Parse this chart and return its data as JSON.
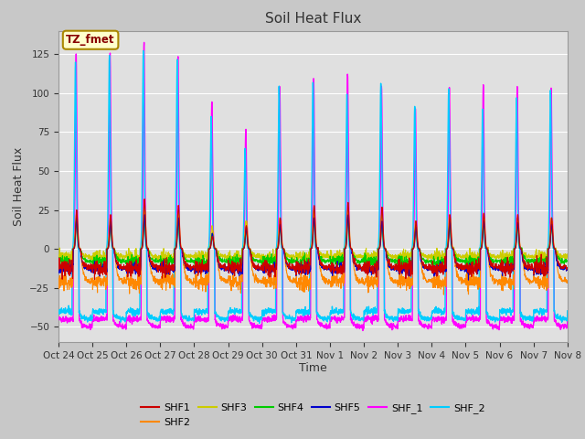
{
  "title": "Soil Heat Flux",
  "ylabel": "Soil Heat Flux",
  "xlabel": "Time",
  "ylim": [
    -60,
    140
  ],
  "fig_bg_color": "#c8c8c8",
  "plot_bg_color": "#e0e0e0",
  "annotation_text": "TZ_fmet",
  "annotation_bg": "#ffffcc",
  "annotation_border": "#aa8800",
  "annotation_text_color": "#880000",
  "series": {
    "SHF1": {
      "color": "#cc0000",
      "lw": 0.8
    },
    "SHF2": {
      "color": "#ff8800",
      "lw": 0.8
    },
    "SHF3": {
      "color": "#cccc00",
      "lw": 0.8
    },
    "SHF4": {
      "color": "#00cc00",
      "lw": 0.8
    },
    "SHF5": {
      "color": "#0000cc",
      "lw": 0.8
    },
    "SHF_1": {
      "color": "#ff00ff",
      "lw": 1.0
    },
    "SHF_2": {
      "color": "#00ccff",
      "lw": 1.0
    }
  },
  "x_tick_labels": [
    "Oct 24",
    "Oct 25",
    "Oct 26",
    "Oct 27",
    "Oct 28",
    "Oct 29",
    "Oct 30",
    "Oct 31",
    "Nov 1",
    "Nov 2",
    "Nov 3",
    "Nov 4",
    "Nov 5",
    "Nov 6",
    "Nov 7",
    "Nov 8"
  ],
  "num_days": 15,
  "points_per_day": 144
}
